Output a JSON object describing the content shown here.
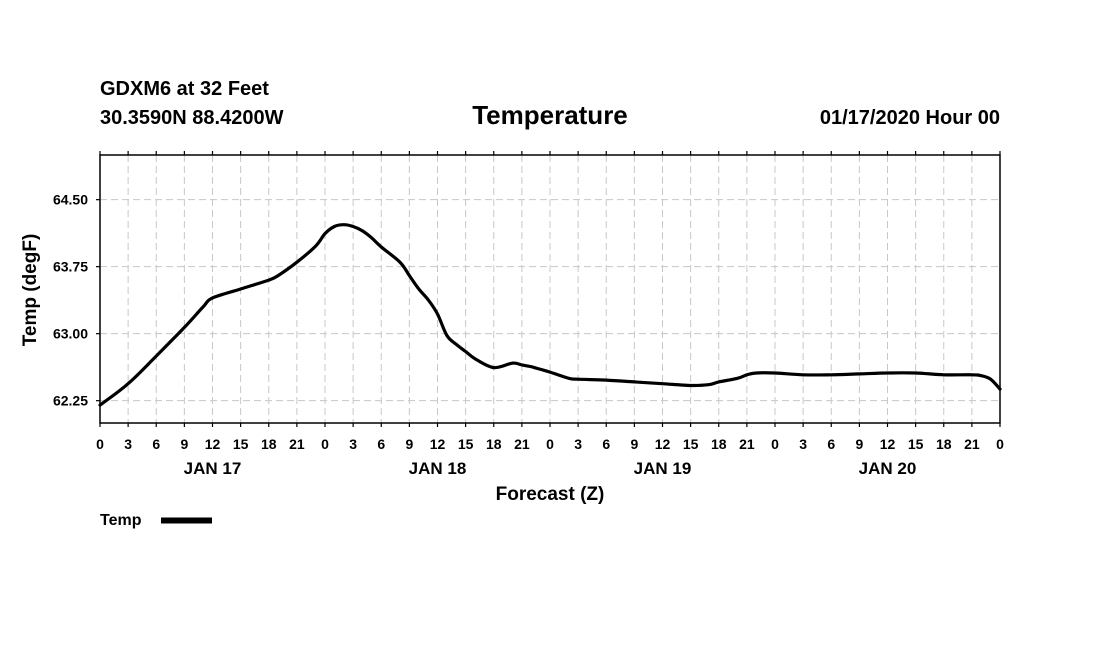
{
  "chart_data": {
    "type": "line",
    "header": {
      "station": "GDXM6 at 32 Feet",
      "location": "30.3590N 88.4200W",
      "title": "Temperature",
      "run": "01/17/2020 Hour 00"
    },
    "ylabel": "Temp (degF)",
    "xlabel": "Forecast (Z)",
    "ylim": [
      62.0,
      65.0
    ],
    "yticks": [
      62.25,
      63.0,
      63.75,
      64.5
    ],
    "ytick_labels": [
      "62.25",
      "63.00",
      "63.75",
      "64.50"
    ],
    "xlim": [
      0,
      96
    ],
    "xtick_labels": [
      "0",
      "3",
      "6",
      "9",
      "12",
      "15",
      "18",
      "21",
      "0",
      "3",
      "6",
      "9",
      "12",
      "15",
      "18",
      "21",
      "0",
      "3",
      "6",
      "9",
      "12",
      "15",
      "18",
      "21",
      "0",
      "3",
      "6",
      "9",
      "12",
      "15",
      "18",
      "21",
      "0"
    ],
    "day_labels": [
      {
        "label": "JAN 17",
        "hour": 12
      },
      {
        "label": "JAN 18",
        "hour": 36
      },
      {
        "label": "JAN 19",
        "hour": 60
      },
      {
        "label": "JAN 20",
        "hour": 84
      }
    ],
    "grid": true,
    "legend": {
      "position": "bottom-left",
      "label": "Temp"
    },
    "series": [
      {
        "name": "Temp",
        "x": [
          0,
          3,
          6,
          9,
          11,
          12,
          15,
          18,
          19,
          21,
          23,
          24,
          25,
          26,
          27,
          28,
          29,
          30,
          32,
          33,
          34,
          35,
          36,
          37,
          38,
          39,
          40,
          42,
          44,
          45,
          46,
          47,
          48,
          50,
          51,
          54,
          57,
          60,
          63,
          65,
          66,
          68,
          69,
          70,
          72,
          75,
          78,
          81,
          84,
          87,
          90,
          93,
          94,
          95,
          96
        ],
        "values": [
          62.2,
          62.44,
          62.75,
          63.07,
          63.3,
          63.4,
          63.5,
          63.6,
          63.65,
          63.8,
          63.98,
          64.12,
          64.2,
          64.22,
          64.2,
          64.15,
          64.07,
          63.97,
          63.8,
          63.65,
          63.5,
          63.38,
          63.22,
          62.98,
          62.88,
          62.8,
          62.72,
          62.62,
          62.67,
          62.65,
          62.63,
          62.6,
          62.57,
          62.5,
          62.49,
          62.48,
          62.46,
          62.44,
          62.42,
          62.43,
          62.46,
          62.5,
          62.54,
          62.56,
          62.56,
          62.54,
          62.54,
          62.55,
          62.56,
          62.56,
          62.54,
          62.54,
          62.53,
          62.49,
          62.38
        ]
      }
    ]
  }
}
